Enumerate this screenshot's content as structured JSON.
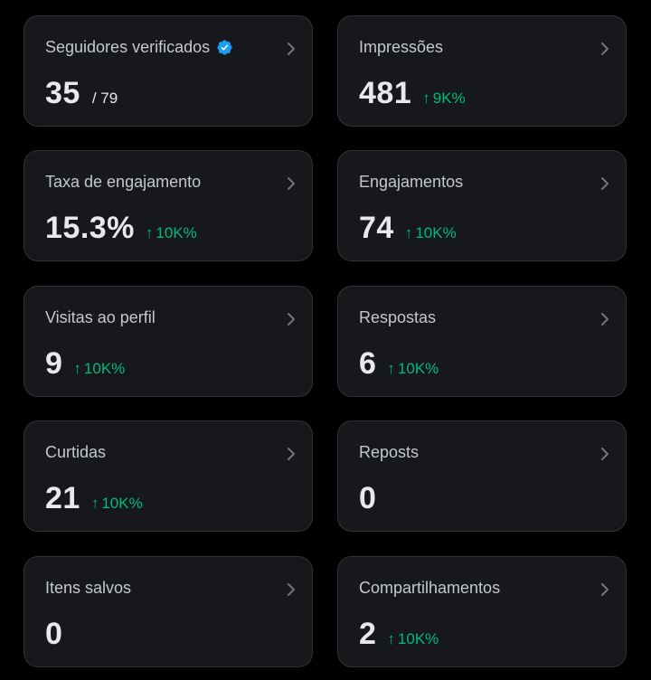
{
  "colors": {
    "background": "#000000",
    "card_background": "#16181c",
    "card_border": "#2f3336",
    "positive_change": "#00ba7c",
    "verified_badge": "#1d9bf0"
  },
  "icons": {
    "verified": "verified-badge-icon",
    "chevron": "chevron-right-icon",
    "increase": "arrow-up-icon"
  },
  "cards": [
    {
      "label": "Seguidores verificados",
      "value": "35",
      "total": "/ 79",
      "change": ""
    },
    {
      "label": "Impressões",
      "value": "481",
      "total": "",
      "change": "9K%"
    },
    {
      "label": "Taxa de engajamento",
      "value": "15.3%",
      "total": "",
      "change": "10K%"
    },
    {
      "label": "Engajamentos",
      "value": "74",
      "total": "",
      "change": "10K%"
    },
    {
      "label": "Visitas ao perfil",
      "value": "9",
      "total": "",
      "change": "10K%"
    },
    {
      "label": "Respostas",
      "value": "6",
      "total": "",
      "change": "10K%"
    },
    {
      "label": "Curtidas",
      "value": "21",
      "total": "",
      "change": "10K%"
    },
    {
      "label": "Reposts",
      "value": "0",
      "total": "",
      "change": ""
    },
    {
      "label": "Itens salvos",
      "value": "0",
      "total": "",
      "change": ""
    },
    {
      "label": "Compartilhamentos",
      "value": "2",
      "total": "",
      "change": "10K%"
    }
  ]
}
